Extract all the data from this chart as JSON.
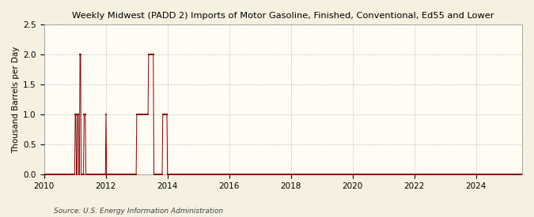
{
  "title": "Weekly Midwest (PADD 2) Imports of Motor Gasoline, Finished, Conventional, Ed55 and Lower",
  "ylabel": "Thousand Barrels per Day",
  "source": "Source: U.S. Energy Information Administration",
  "background_color": "#f5f0e0",
  "plot_bg_color": "#fefcf3",
  "line_color": "#8b0000",
  "grid_color": "#b0b0b0",
  "ylim": [
    0,
    2.5
  ],
  "yticks": [
    0.0,
    0.5,
    1.0,
    1.5,
    2.0,
    2.5
  ],
  "xlim_start": 2010,
  "xlim_end": 2025.5,
  "xticks": [
    2010,
    2012,
    2014,
    2016,
    2018,
    2020,
    2022,
    2024
  ],
  "segments": [
    {
      "x_values": [
        2010.0,
        2010.81
      ],
      "y": 0.0
    },
    {
      "x_values": [
        2010.84,
        2010.88
      ],
      "y": 0.0
    },
    {
      "x_values": [
        2010.92,
        2010.96
      ],
      "y": 0.0
    },
    {
      "x_values": [
        2011.0,
        2011.04
      ],
      "y": 1.0
    },
    {
      "x_values": [
        2011.08,
        2011.12
      ],
      "y": 1.0
    },
    {
      "x_values": [
        2011.0,
        2011.04
      ],
      "y": 0.0
    },
    {
      "x_values": [
        2011.15,
        2011.19
      ],
      "y": 2.0
    },
    {
      "x_values": [
        2011.3,
        2011.34
      ],
      "y": 1.0
    },
    {
      "x_values": [
        2011.4,
        2012.0
      ],
      "y": 0.0
    },
    {
      "x_values": [
        2012.0,
        2012.02
      ],
      "y": 1.0
    },
    {
      "x_values": [
        2012.04,
        2012.7
      ],
      "y": 0.0
    },
    {
      "x_values": [
        2012.73,
        2012.77
      ],
      "y": 0.0
    },
    {
      "x_values": [
        2013.0,
        2013.06
      ],
      "y": 1.0
    },
    {
      "x_values": [
        2013.08,
        2013.14
      ],
      "y": 1.0
    },
    {
      "x_values": [
        2013.16,
        2013.22
      ],
      "y": 1.0
    },
    {
      "x_values": [
        2013.24,
        2013.3
      ],
      "y": 1.0
    },
    {
      "x_values": [
        2013.32,
        2013.38
      ],
      "y": 1.0
    },
    {
      "x_values": [
        2013.4,
        2013.46
      ],
      "y": 2.0
    },
    {
      "x_values": [
        2013.48,
        2013.54
      ],
      "y": 2.0
    },
    {
      "x_values": [
        2013.58,
        2013.64
      ],
      "y": 0.0
    },
    {
      "x_values": [
        2013.85,
        2013.91
      ],
      "y": 1.0
    },
    {
      "x_values": [
        2013.93,
        2013.99
      ],
      "y": 1.0
    },
    {
      "x_values": [
        2014.0,
        2025.4
      ],
      "y": 0.0
    }
  ]
}
